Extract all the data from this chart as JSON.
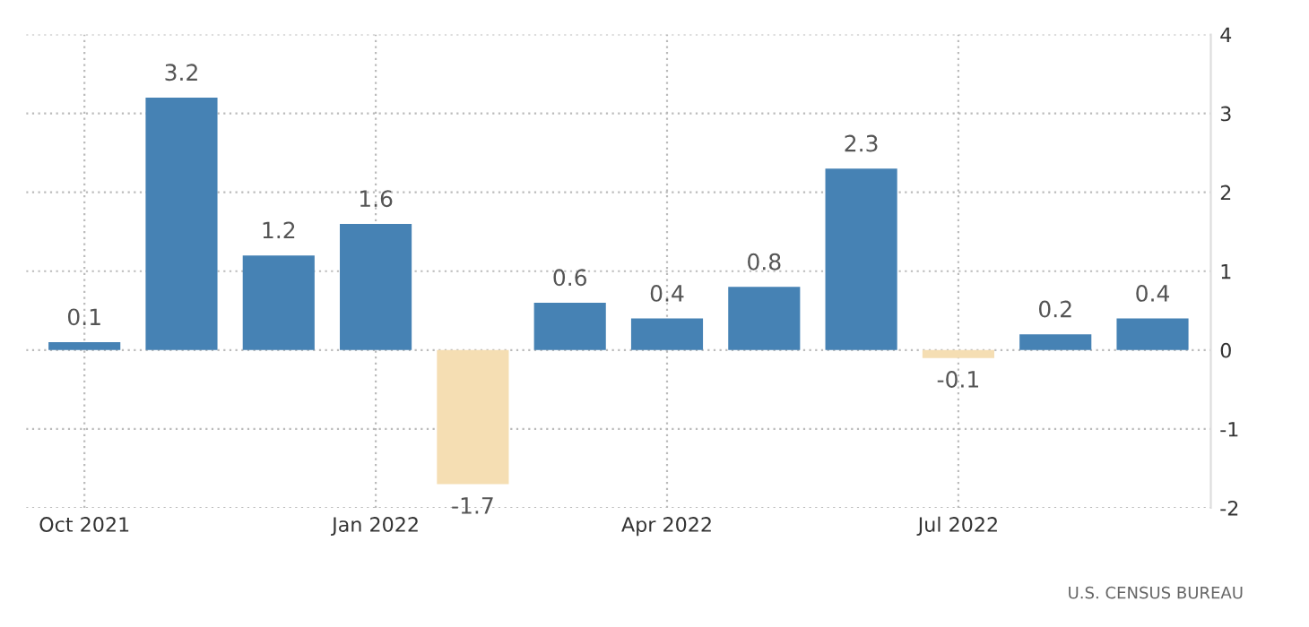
{
  "chart_data": {
    "type": "bar",
    "categories": [
      "Oct 2021",
      null,
      null,
      "Jan 2022",
      null,
      null,
      "Apr 2022",
      null,
      null,
      "Jul 2022",
      null,
      null
    ],
    "values": [
      0.1,
      3.2,
      1.2,
      1.6,
      -1.7,
      0.6,
      0.4,
      0.8,
      2.3,
      -0.1,
      0.2,
      0.4
    ],
    "colors": [
      "#4682b4",
      "#4682b4",
      "#4682b4",
      "#4682b4",
      "#f5deb3",
      "#4682b4",
      "#4682b4",
      "#4682b4",
      "#4682b4",
      "#f5deb3",
      "#4682b4",
      "#4682b4"
    ],
    "ylim": [
      -2,
      4
    ],
    "yticks": [
      -2,
      -1,
      0,
      1,
      2,
      3,
      4
    ],
    "grid": true,
    "data_labels": true,
    "annotations": [
      "U.S. CENSUS BUREAU"
    ]
  }
}
